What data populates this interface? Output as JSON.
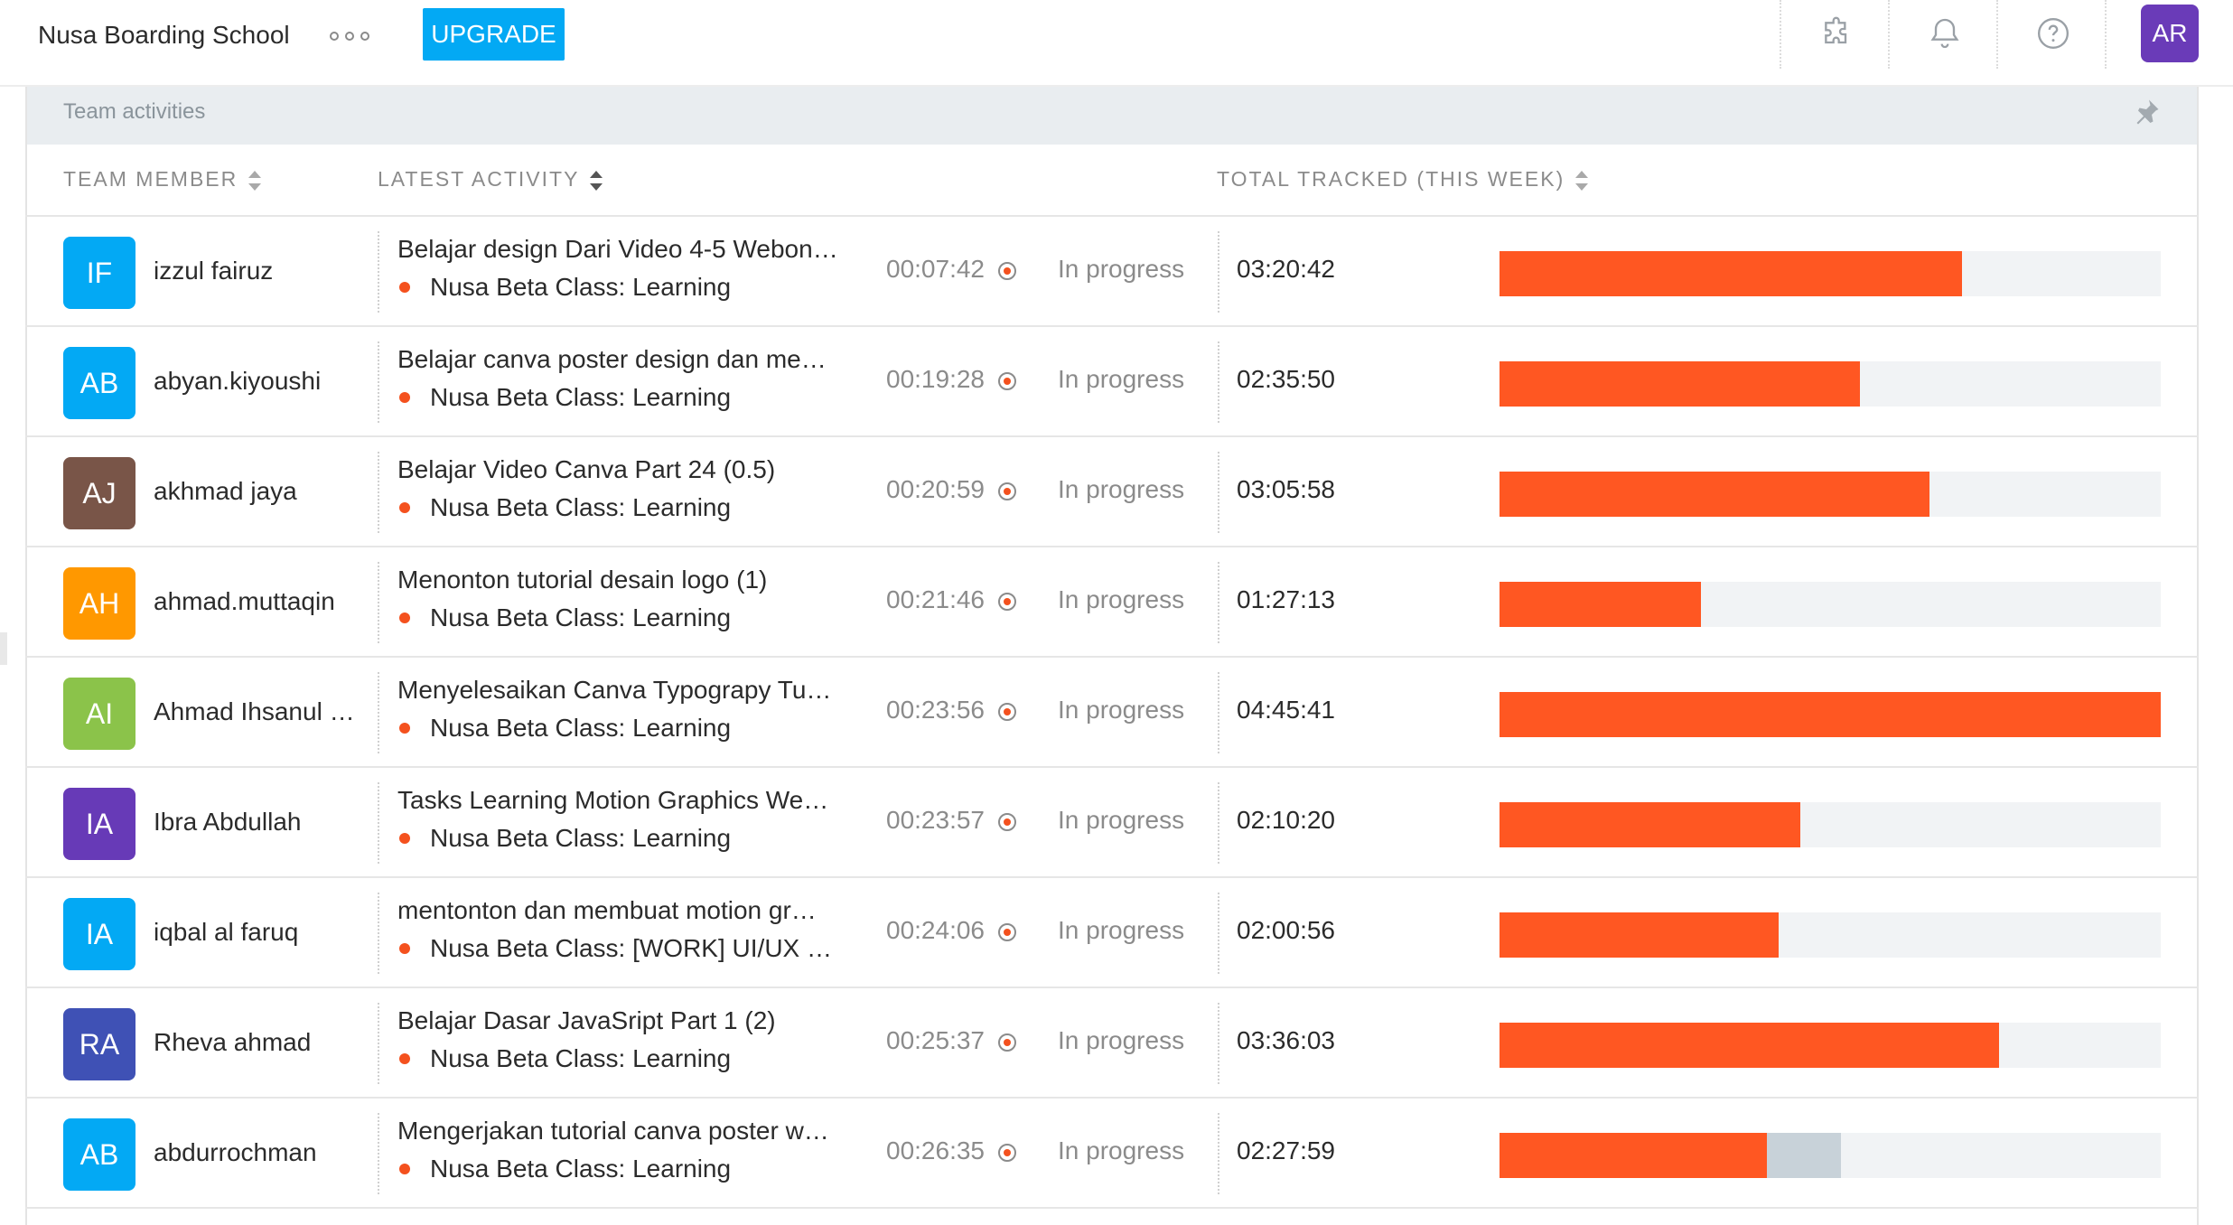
{
  "topbar": {
    "org_name": "Nusa Boarding School",
    "upgrade_label": "UPGRADE",
    "user_initials": "AR",
    "user_avatar_color": "#6a3bb8",
    "icons": [
      "puzzle-icon",
      "bell-icon",
      "help-icon"
    ]
  },
  "panel": {
    "title": "Team activities",
    "columns": {
      "member": "TEAM MEMBER",
      "activity": "LATEST ACTIVITY",
      "total": "TOTAL TRACKED (THIS WEEK)"
    }
  },
  "colors": {
    "accent": "#03a9f4",
    "bar": "#ff5722",
    "bar_idle": "#c8d2d9",
    "dot": "#f4511e"
  },
  "rows": [
    {
      "initials": "IF",
      "color": "#03a9f4",
      "name": "izzul fairuz",
      "task": "Belajar design Dari Video 4-5 Webon…",
      "project": "Nusa Beta Class: Learning",
      "duration": "00:07:42",
      "status": "In progress",
      "total": "03:20:42",
      "progress": 0.7
    },
    {
      "initials": "AB",
      "color": "#03a9f4",
      "name": "abyan.kiyoushi",
      "task": "Belajar canva poster design dan me…",
      "project": "Nusa Beta Class: Learning",
      "duration": "00:19:28",
      "status": "In progress",
      "total": "02:35:50",
      "progress": 0.545
    },
    {
      "initials": "AJ",
      "color": "#795548",
      "name": "akhmad jaya",
      "task": "Belajar Video Canva Part 24 (0.5)",
      "project": "Nusa Beta Class: Learning",
      "duration": "00:20:59",
      "status": "In progress",
      "total": "03:05:58",
      "progress": 0.65
    },
    {
      "initials": "AH",
      "color": "#ff9800",
      "name": "ahmad.muttaqin",
      "task": "Menonton tutorial desain logo (1)",
      "project": "Nusa Beta Class: Learning",
      "duration": "00:21:46",
      "status": "In progress",
      "total": "01:27:13",
      "progress": 0.305
    },
    {
      "initials": "AI",
      "color": "#8bc34a",
      "name": "Ahmad Ihsanul …",
      "task": "Menyelesaikan Canva Typograpy Tu…",
      "project": "Nusa Beta Class: Learning",
      "duration": "00:23:56",
      "status": "In progress",
      "total": "04:45:41",
      "progress": 1.0
    },
    {
      "initials": "IA",
      "color": "#673ab7",
      "name": "Ibra Abdullah",
      "task": "Tasks Learning Motion Graphics We…",
      "project": "Nusa Beta Class: Learning",
      "duration": "00:23:57",
      "status": "In progress",
      "total": "02:10:20",
      "progress": 0.455
    },
    {
      "initials": "IA",
      "color": "#03a9f4",
      "name": "iqbal al faruq",
      "task": "mentonton dan membuat motion gr…",
      "project": "Nusa Beta Class: [WORK] UI/UX …",
      "duration": "00:24:06",
      "status": "In progress",
      "total": "02:00:56",
      "progress": 0.422
    },
    {
      "initials": "RA",
      "color": "#3f51b5",
      "name": "Rheva ahmad",
      "task": "Belajar Dasar JavaSript Part 1 (2)",
      "project": "Nusa Beta Class: Learning",
      "duration": "00:25:37",
      "status": "In progress",
      "total": "03:36:03",
      "progress": 0.756
    },
    {
      "initials": "AB",
      "color": "#03a9f4",
      "name": "abdurrochman",
      "task": "Mengerjakan tutorial canva poster w…",
      "project": "Nusa Beta Class: Learning",
      "duration": "00:26:35",
      "status": "In progress",
      "total": "02:27:59",
      "progress": 0.404,
      "idle": 0.112
    }
  ]
}
